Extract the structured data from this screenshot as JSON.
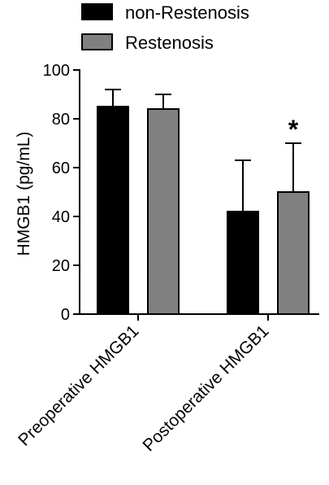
{
  "chart_data": {
    "type": "bar",
    "categories": [
      "Preoperative HMGB1",
      "Postoperative HMGB1"
    ],
    "series": [
      {
        "name": "non-Restenosis",
        "color": "#000000",
        "values": [
          85,
          42
        ],
        "error": [
          7,
          21
        ]
      },
      {
        "name": "Restenosis",
        "color": "#808080",
        "values": [
          84,
          50
        ],
        "error": [
          6,
          20
        ]
      }
    ],
    "ylabel": "HMGB1 (pg/mL)",
    "ylim": [
      0,
      100
    ],
    "yticks": [
      "0",
      "20",
      "40",
      "60",
      "80",
      "100"
    ],
    "annotations": [
      {
        "text": "*",
        "category": 1,
        "series": 1
      }
    ],
    "legend_position": "top",
    "grid": false
  }
}
